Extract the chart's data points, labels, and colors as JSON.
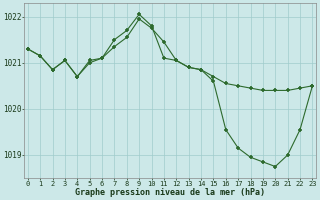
{
  "line1_x": [
    0,
    1,
    2,
    3,
    4,
    5,
    6,
    7,
    8,
    9,
    10,
    11,
    12,
    13,
    14,
    15,
    16,
    17,
    18,
    19,
    20,
    21,
    22,
    23
  ],
  "line1_y": [
    1021.3,
    1021.15,
    1020.85,
    1021.05,
    1020.7,
    1021.05,
    1021.1,
    1021.35,
    1021.55,
    1021.95,
    1021.75,
    1021.45,
    1021.05,
    1020.9,
    1020.85,
    1020.7,
    1020.55,
    1020.5,
    1020.45,
    1020.4,
    1020.4,
    1020.4,
    1020.45,
    1020.5
  ],
  "line2_x": [
    0,
    1,
    2,
    3,
    4,
    5,
    6,
    7,
    8,
    9,
    10,
    11,
    12,
    13,
    14,
    15,
    16,
    17,
    18,
    19,
    20,
    21,
    22,
    23
  ],
  "line2_y": [
    1021.3,
    1021.15,
    1020.85,
    1021.05,
    1020.7,
    1021.0,
    1021.1,
    1021.5,
    1021.7,
    1022.05,
    1021.8,
    1021.1,
    1021.05,
    1020.9,
    1020.85,
    1020.6,
    1019.55,
    1019.15,
    1018.95,
    1018.85,
    1018.75,
    1019.0,
    1019.55,
    1020.5
  ],
  "line_color": "#2d6a2d",
  "bg_color": "#cce8e8",
  "grid_color": "#a0cccc",
  "xlabel": "Graphe pression niveau de la mer (hPa)",
  "ylim_min": 1018.5,
  "ylim_max": 1022.3,
  "yticks": [
    1019,
    1020,
    1021,
    1022
  ],
  "xticks": [
    0,
    1,
    2,
    3,
    4,
    5,
    6,
    7,
    8,
    9,
    10,
    11,
    12,
    13,
    14,
    15,
    16,
    17,
    18,
    19,
    20,
    21,
    22,
    23
  ],
  "marker": "+",
  "markersize": 3.5,
  "markeredgewidth": 1.2,
  "linewidth": 0.8
}
